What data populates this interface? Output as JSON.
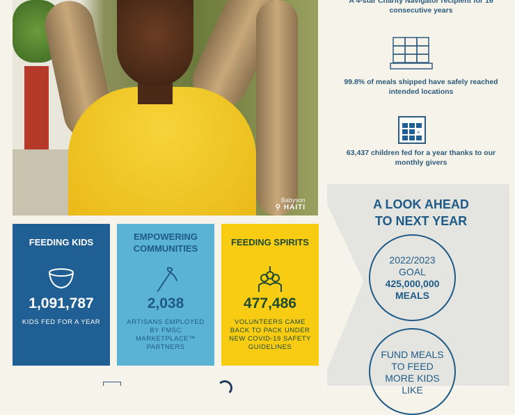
{
  "photo": {
    "name": "Babyson",
    "country": "HAITI",
    "pin_icon": "location-pin-icon"
  },
  "stats": [
    {
      "text": "A 4-star Charity Navigator recipient for 16 consecutive years"
    },
    {
      "icon": "pallet-boxes-icon",
      "text": "99.8% of meals shipped have safely reached intended locations"
    },
    {
      "icon": "calendar-icon",
      "text": "63,437 children fed for a year thanks to our monthly givers"
    }
  ],
  "cards": [
    {
      "title": "FEEDING KIDS",
      "icon": "bowl-icon",
      "number": "1,091,787",
      "desc": "KIDS FED FOR A YEAR",
      "color": "#1f5f94"
    },
    {
      "title": "EMPOWERING COMMUNITIES",
      "icon": "needle-thread-icon",
      "number": "2,038",
      "desc": "ARTISANS EMPLOYED BY FMSC MARKETPLACE™ PARTNERS",
      "color": "#5bb3d3"
    },
    {
      "title": "FEEDING SPIRITS",
      "icon": "volunteers-icon",
      "number": "477,486",
      "desc": "VOLUNTEERS CAME BACK TO PACK UNDER NEW COVID-19 SAFETY GUIDELINES",
      "color": "#f8cc12"
    }
  ],
  "look_ahead": {
    "title": "A LOOK AHEAD TO NEXT YEAR",
    "goal_year": "2022/2023",
    "goal_label": "GOAL",
    "goal_value": "425,000,000",
    "goal_unit": "MEALS",
    "fund_text": "FUND MEALS TO FEED MORE KIDS LIKE"
  }
}
